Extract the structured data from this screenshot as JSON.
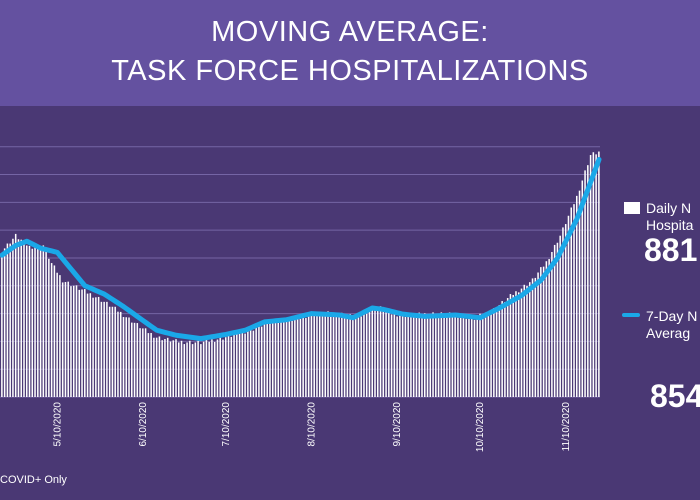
{
  "title_lines": [
    "MOVING AVERAGE:",
    "TASK FORCE HOSPITALIZATIONS"
  ],
  "footnote": "COVID+ Only",
  "legend": {
    "bars_label_line1": "Daily N",
    "bars_label_line2": "Hospita",
    "bars_value": "881",
    "line_label_line1": "7-Day N",
    "line_label_line2": "Averag",
    "line_value": "854"
  },
  "colors": {
    "header_bg": "#6451a0",
    "chart_bg": "#4a3874",
    "bars": "#ffffff",
    "line": "#1aa8e8",
    "grid": "#7565a5"
  },
  "chart_data": {
    "type": "bar",
    "x_start": "2020-04-20",
    "x_end": "2020-11-22",
    "x_ticks": [
      "5/10/2020",
      "6/10/2020",
      "7/10/2020",
      "8/10/2020",
      "9/10/2020",
      "10/10/2020",
      "11/10/2020"
    ],
    "grid": true,
    "legend_position": "right",
    "series": [
      {
        "kind": "bar",
        "keypoints": [
          [
            "2020-04-20",
            525
          ],
          [
            "2020-04-25",
            580
          ],
          [
            "2020-04-30",
            540
          ],
          [
            "2020-05-05",
            545
          ],
          [
            "2020-05-08",
            480
          ],
          [
            "2020-05-12",
            420
          ],
          [
            "2020-05-20",
            380
          ],
          [
            "2020-05-25",
            355
          ],
          [
            "2020-06-01",
            310
          ],
          [
            "2020-06-10",
            245
          ],
          [
            "2020-06-15",
            215
          ],
          [
            "2020-06-22",
            200
          ],
          [
            "2020-07-01",
            195
          ],
          [
            "2020-07-10",
            215
          ],
          [
            "2020-07-20",
            245
          ],
          [
            "2020-07-27",
            275
          ],
          [
            "2020-08-05",
            280
          ],
          [
            "2020-08-10",
            300
          ],
          [
            "2020-08-20",
            300
          ],
          [
            "2020-08-27",
            285
          ],
          [
            "2020-09-02",
            330
          ],
          [
            "2020-09-08",
            300
          ],
          [
            "2020-09-15",
            292
          ],
          [
            "2020-09-22",
            300
          ],
          [
            "2020-10-01",
            295
          ],
          [
            "2020-10-08",
            282
          ],
          [
            "2020-10-15",
            315
          ],
          [
            "2020-10-22",
            370
          ],
          [
            "2020-10-29",
            420
          ],
          [
            "2020-11-03",
            485
          ],
          [
            "2020-11-08",
            580
          ],
          [
            "2020-11-14",
            720
          ],
          [
            "2020-11-19",
            870
          ],
          [
            "2020-11-22",
            881
          ]
        ]
      },
      {
        "kind": "line",
        "keypoints": [
          [
            "2020-04-20",
            510
          ],
          [
            "2020-04-25",
            545
          ],
          [
            "2020-04-29",
            560
          ],
          [
            "2020-05-04",
            535
          ],
          [
            "2020-05-10",
            520
          ],
          [
            "2020-05-15",
            460
          ],
          [
            "2020-05-20",
            400
          ],
          [
            "2020-05-27",
            370
          ],
          [
            "2020-06-03",
            325
          ],
          [
            "2020-06-10",
            275
          ],
          [
            "2020-06-15",
            240
          ],
          [
            "2020-06-22",
            222
          ],
          [
            "2020-07-01",
            210
          ],
          [
            "2020-07-10",
            225
          ],
          [
            "2020-07-17",
            240
          ],
          [
            "2020-07-24",
            270
          ],
          [
            "2020-08-01",
            278
          ],
          [
            "2020-08-10",
            300
          ],
          [
            "2020-08-20",
            295
          ],
          [
            "2020-08-25",
            285
          ],
          [
            "2020-09-01",
            320
          ],
          [
            "2020-09-05",
            315
          ],
          [
            "2020-09-12",
            298
          ],
          [
            "2020-09-20",
            290
          ],
          [
            "2020-10-01",
            295
          ],
          [
            "2020-10-10",
            285
          ],
          [
            "2020-10-17",
            320
          ],
          [
            "2020-10-25",
            365
          ],
          [
            "2020-11-01",
            420
          ],
          [
            "2020-11-07",
            500
          ],
          [
            "2020-11-14",
            640
          ],
          [
            "2020-11-20",
            800
          ],
          [
            "2020-11-22",
            854
          ]
        ]
      }
    ]
  }
}
